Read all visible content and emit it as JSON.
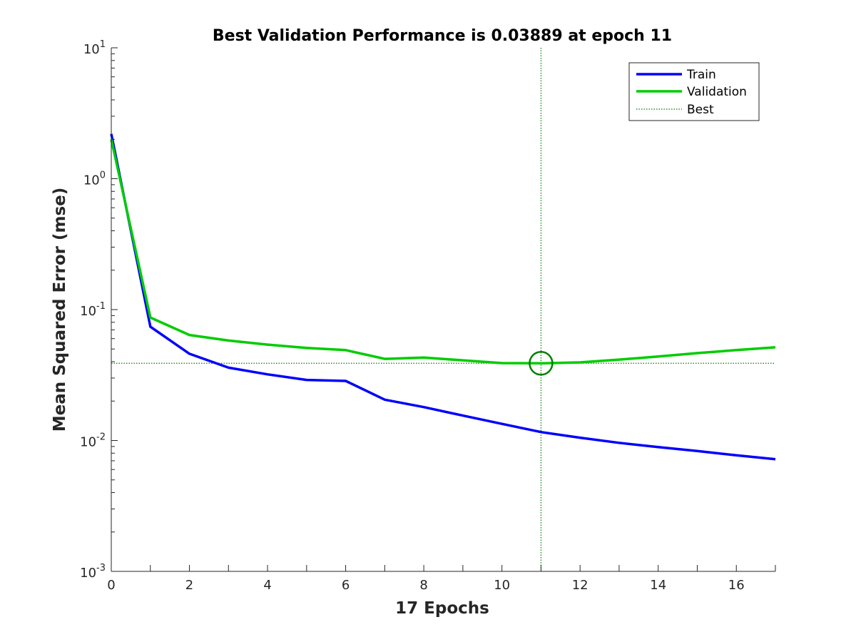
{
  "chart_data": {
    "type": "line",
    "title": "Best Validation Performance is 0.03889 at epoch 11",
    "xlabel": "17 Epochs",
    "ylabel": "Mean Squared Error  (mse)",
    "xlim": [
      0,
      17
    ],
    "ylim": [
      0.001,
      10
    ],
    "yscale": "log",
    "grid": false,
    "legend_position": "top-right",
    "x_ticks": [
      0,
      2,
      4,
      6,
      8,
      10,
      12,
      14,
      16
    ],
    "y_ticks": [
      {
        "value": 10,
        "base": "10",
        "exp": "1"
      },
      {
        "value": 1,
        "base": "10",
        "exp": "0"
      },
      {
        "value": 0.1,
        "base": "10",
        "exp": "-1"
      },
      {
        "value": 0.01,
        "base": "10",
        "exp": "-2"
      },
      {
        "value": 0.001,
        "base": "10",
        "exp": "-3"
      }
    ],
    "x": [
      0,
      1,
      2,
      3,
      4,
      5,
      6,
      7,
      8,
      9,
      10,
      11,
      12,
      13,
      14,
      15,
      16,
      17
    ],
    "series": [
      {
        "name": "Train",
        "color": "#0000ff",
        "values": [
          2.2,
          0.074,
          0.046,
          0.036,
          0.032,
          0.029,
          0.0285,
          0.0205,
          0.018,
          0.0155,
          0.0134,
          0.0116,
          0.0105,
          0.0096,
          0.0089,
          0.0083,
          0.0077,
          0.0072
        ]
      },
      {
        "name": "Validation",
        "color": "#00cc00",
        "values": [
          2.0,
          0.087,
          0.064,
          0.058,
          0.054,
          0.051,
          0.049,
          0.042,
          0.043,
          0.041,
          0.039,
          0.03889,
          0.0395,
          0.0415,
          0.0438,
          0.0465,
          0.049,
          0.0515
        ]
      }
    ],
    "best": {
      "name": "Best",
      "epoch": 11,
      "value": 0.03889,
      "color": "#008000"
    }
  }
}
